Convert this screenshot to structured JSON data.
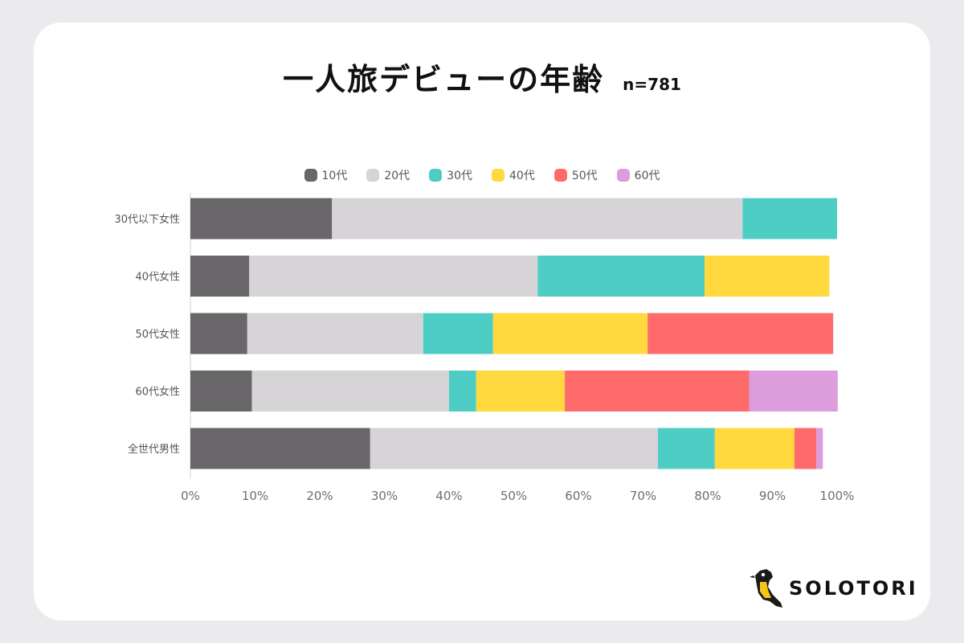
{
  "title": "一人旅デビューの年齢",
  "subtitle": "n=781",
  "brand": "SOLOTORI",
  "chart_data": {
    "type": "bar",
    "orientation": "horizontal",
    "stacked": true,
    "categories": [
      "30代以下女性",
      "40代女性",
      "50代女性",
      "60代女性",
      "全世代男性"
    ],
    "series": [
      {
        "name": "10代",
        "color": "#686668",
        "values": [
          21.9,
          9.1,
          8.8,
          9.5,
          27.8
        ]
      },
      {
        "name": "20代",
        "color": "#d6d4d6",
        "values": [
          63.5,
          44.6,
          27.2,
          30.5,
          44.5
        ]
      },
      {
        "name": "30代",
        "color": "#4ecdc4",
        "values": [
          14.6,
          25.8,
          10.8,
          4.2,
          8.8
        ]
      },
      {
        "name": "40代",
        "color": "#ffd93d",
        "values": [
          0,
          19.3,
          23.9,
          13.7,
          12.3
        ]
      },
      {
        "name": "50代",
        "color": "#ff6b6b",
        "values": [
          0,
          0,
          28.7,
          28.5,
          3.4
        ]
      },
      {
        "name": "60代",
        "color": "#dc9ddd",
        "values": [
          0,
          0,
          0,
          13.7,
          1.0
        ]
      }
    ],
    "xticks": [
      "0%",
      "10%",
      "20%",
      "30%",
      "40%",
      "50%",
      "60%",
      "70%",
      "80%",
      "90%",
      "100%"
    ],
    "xlim": [
      0,
      100
    ],
    "legend": "top-center",
    "grid": false
  }
}
